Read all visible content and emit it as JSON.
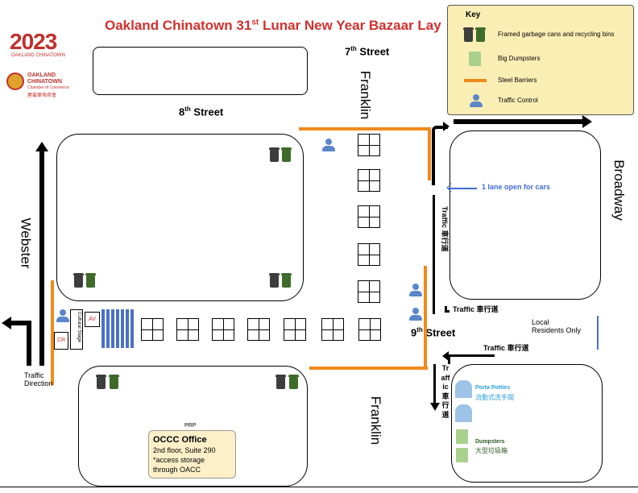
{
  "title": {
    "prefix": "Oakland Chinatown 31",
    "sup": "st",
    "suffix": " Lunar New Year Bazaar Lay"
  },
  "logos": {
    "year_logo_text": "2023",
    "year_logo_sub": "OAKLAND CHINATOWN",
    "chamber_line1": "OAKLAND",
    "chamber_line2": "CHINATOWN",
    "chamber_line3": "Chamber of Commerce",
    "chamber_line4": "屋崙華埠商會"
  },
  "key": {
    "title": "Key",
    "rows": [
      {
        "icon": "garbage-cans-icon",
        "label": "Framed garbage cans and recycling bins"
      },
      {
        "icon": "big-dumpster-icon",
        "label": "Big Dumpsters"
      },
      {
        "icon": "steel-barrier-icon",
        "label": "Steel Barriers"
      },
      {
        "icon": "traffic-control-icon",
        "label": "Traffic Control"
      }
    ]
  },
  "streets": {
    "seventh": {
      "num": "7",
      "sup": "th",
      "name": " Street"
    },
    "eighth": {
      "num": "8",
      "sup": "th",
      "name": " Street"
    },
    "ninth": {
      "num": "9",
      "sup": "th",
      "name": " Street"
    },
    "franklin_top": "Franklin",
    "franklin_bottom": "Franklin",
    "broadway": "Broadway",
    "webster": "Webster"
  },
  "labels": {
    "lane_open": "1 lane open for cars",
    "traffic_vertical_right": "Traffic 車行道",
    "traffic_9th_upper": "Traffic 車行道",
    "traffic_9th_lower": "Traffic 車行道",
    "traffic_vertical_bottom": "Traffic 車行道",
    "local_residents_line1": "Local",
    "local_residents_line2": "Residents Only",
    "traffic_direction_line1": "Traffic",
    "traffic_direction_line2": "Direction",
    "cultural_stage": "Cultural Stage",
    "av": "AV",
    "cr": "CR",
    "prp": "PRP",
    "porta_potties_en": "Porta Potties",
    "porta_potties_zh": "流動式洗手間",
    "dumpsters_en": "Dumpsters",
    "dumpsters_zh": "大型垃圾箱"
  },
  "occc_office": {
    "title": "OCCC Office",
    "line1": "2nd floor, Suite 290",
    "line2": "*access storage",
    "line3": "through OACC"
  },
  "colors": {
    "title": "#d0312d",
    "barrier": "#f08a1c",
    "traffic_control": "#5b86c9",
    "dumpster": "#a9d18e",
    "key_bg": "#fbeeb5",
    "office_bg": "#fdf0c8",
    "porta_potty": "#9dc3e6",
    "lane_text": "#3f6ad8"
  }
}
